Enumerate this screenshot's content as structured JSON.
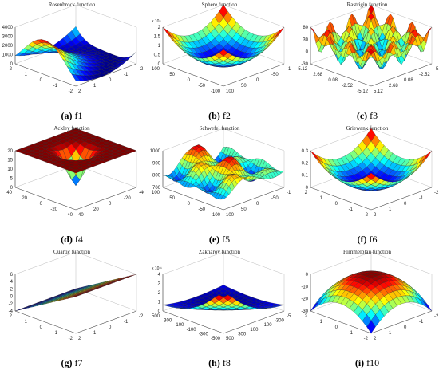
{
  "figure": {
    "panels": [
      {
        "id": "f1",
        "letter": "(a)",
        "caption": "f1",
        "title": "Rosenbrock  function",
        "z_ticks": [
          "4000",
          "3000",
          "2000",
          "1000",
          "0"
        ],
        "z_exponent": "",
        "x_ticks": [
          "2",
          "1",
          "0",
          "-1",
          "-2"
        ],
        "y_ticks": [
          "-2",
          "-1",
          "0",
          "1",
          "2"
        ],
        "style": "valley"
      },
      {
        "id": "f2",
        "letter": "(b)",
        "caption": "f2",
        "title": "Sphere function",
        "z_ticks": [
          "2",
          "1.5",
          "1",
          "0.5",
          "0"
        ],
        "z_exponent": "x 10⁴",
        "x_ticks": [
          "100",
          "50",
          "0",
          "-50",
          "-100"
        ],
        "y_ticks": [
          "-100",
          "-50",
          "0",
          "50",
          "100"
        ],
        "style": "bowl"
      },
      {
        "id": "f3",
        "letter": "(c)",
        "caption": "f3",
        "title": "Rastrigin function",
        "z_ticks": [
          "80",
          "30",
          "0",
          "-30"
        ],
        "z_exponent": "",
        "x_ticks": [
          "5.12",
          "2.68",
          "0.08",
          "-2.52",
          "-5.12"
        ],
        "y_ticks": [
          "-5.12",
          "-2.52",
          "0.08",
          "2.68",
          "5.12"
        ],
        "style": "spiky"
      },
      {
        "id": "f4",
        "letter": "(d)",
        "caption": "f4",
        "title": "Ackley function",
        "z_ticks": [
          "20",
          "15",
          "10",
          "5",
          "0"
        ],
        "z_exponent": "",
        "x_ticks": [
          "40",
          "20",
          "0",
          "-20",
          "-40"
        ],
        "y_ticks": [
          "-40",
          "-20",
          "0",
          "20",
          "40"
        ],
        "style": "funnel"
      },
      {
        "id": "f5",
        "letter": "(e)",
        "caption": "f5",
        "title": "Schwefel function",
        "z_ticks": [
          "1000",
          "900",
          "800",
          "700"
        ],
        "z_exponent": "",
        "x_ticks": [
          "100",
          "50",
          "0",
          "-50",
          "-100"
        ],
        "y_ticks": [
          "-100",
          "-50",
          "0",
          "50",
          "100"
        ],
        "style": "wavy"
      },
      {
        "id": "f6",
        "letter": "(f)",
        "caption": "f6",
        "title": "Griewank  function",
        "z_ticks": [
          "0.3",
          "0.2",
          "0.1",
          "0"
        ],
        "z_exponent": "",
        "x_ticks": [
          "2",
          "1",
          "0",
          "-1",
          "-2"
        ],
        "y_ticks": [
          "-2",
          "-1",
          "0",
          "1",
          "2"
        ],
        "style": "bowl"
      },
      {
        "id": "f7",
        "letter": "(g)",
        "caption": "f7",
        "title": "Quartic  function",
        "z_ticks": [
          "6",
          "4",
          "2",
          "0",
          "-2",
          "-4"
        ],
        "z_exponent": "",
        "x_ticks": [
          "2",
          "1",
          "0",
          "-1",
          "-2"
        ],
        "y_ticks": [
          "-2",
          "-1",
          "0",
          "1",
          "2"
        ],
        "style": "plane"
      },
      {
        "id": "f8",
        "letter": "(h)",
        "caption": "f8",
        "title": "Zakharov  function",
        "z_ticks": [
          "4",
          "3",
          "2",
          "1",
          "0"
        ],
        "z_exponent": "x 10¹¹",
        "x_ticks": [
          "500",
          "300",
          "100",
          "-100",
          "-300",
          "-500"
        ],
        "y_ticks": [
          "-500",
          "-300",
          "-100",
          "100",
          "300",
          "500"
        ],
        "style": "spike"
      },
      {
        "id": "f9",
        "letter": "(i)",
        "caption": "f10",
        "title": "Himmelblau function",
        "z_ticks": [
          "0",
          "-10",
          "-20",
          "-30"
        ],
        "z_exponent": "",
        "x_ticks": [
          "2",
          "1",
          "0",
          "-1",
          "-2"
        ],
        "y_ticks": [
          "-2",
          "-1",
          "0",
          "1",
          "2"
        ],
        "style": "dome"
      }
    ]
  },
  "chart_data": [
    {
      "type": "surface",
      "title": "Rosenbrock  function",
      "zlim": [
        0,
        4000
      ],
      "xlim": [
        -2,
        2
      ],
      "ylim": [
        -2,
        2
      ]
    },
    {
      "type": "surface",
      "title": "Sphere function",
      "zlim": [
        0,
        20000
      ],
      "xlim": [
        -100,
        100
      ],
      "ylim": [
        -100,
        100
      ]
    },
    {
      "type": "surface",
      "title": "Rastrigin function",
      "zlim": [
        -30,
        80
      ],
      "xlim": [
        -5.12,
        5.12
      ],
      "ylim": [
        -5.12,
        5.12
      ]
    },
    {
      "type": "surface",
      "title": "Ackley function",
      "zlim": [
        0,
        20
      ],
      "xlim": [
        -40,
        40
      ],
      "ylim": [
        -40,
        40
      ]
    },
    {
      "type": "surface",
      "title": "Schwefel function",
      "zlim": [
        700,
        1000
      ],
      "xlim": [
        -100,
        100
      ],
      "ylim": [
        -100,
        100
      ]
    },
    {
      "type": "surface",
      "title": "Griewank  function",
      "zlim": [
        0,
        0.3
      ],
      "xlim": [
        -2,
        2
      ],
      "ylim": [
        -2,
        2
      ]
    },
    {
      "type": "surface",
      "title": "Quartic  function",
      "zlim": [
        -4,
        6
      ],
      "xlim": [
        -2,
        2
      ],
      "ylim": [
        -2,
        2
      ]
    },
    {
      "type": "surface",
      "title": "Zakharov  function",
      "zlim": [
        0,
        400000000000
      ],
      "xlim": [
        -500,
        500
      ],
      "ylim": [
        -500,
        500
      ]
    },
    {
      "type": "surface",
      "title": "Himmelblau function",
      "zlim": [
        -30,
        0
      ],
      "xlim": [
        -2,
        2
      ],
      "ylim": [
        -2,
        2
      ]
    }
  ]
}
